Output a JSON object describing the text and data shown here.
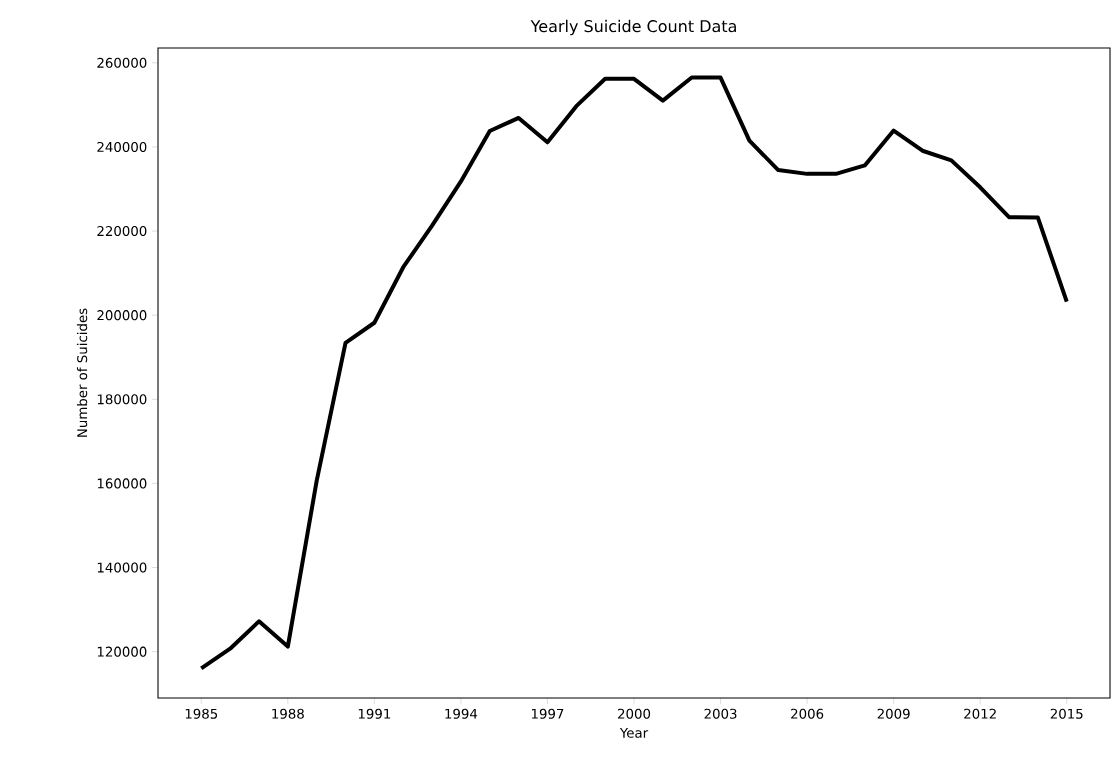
{
  "chart_data": {
    "type": "line",
    "title": "Yearly Suicide Count Data",
    "xlabel": "Year",
    "ylabel": "Number of Suicides",
    "x": [
      1985,
      1986,
      1987,
      1988,
      1989,
      1990,
      1991,
      1992,
      1993,
      1994,
      1995,
      1996,
      1997,
      1998,
      1999,
      2000,
      2001,
      2002,
      2003,
      2004,
      2005,
      2006,
      2007,
      2008,
      2009,
      2010,
      2011,
      2012,
      2013,
      2014,
      2015
    ],
    "series": [
      {
        "color": "#000000",
        "values": [
          116000,
          120700,
          127200,
          121200,
          160600,
          193400,
          198200,
          211400,
          221300,
          231800,
          243800,
          246900,
          241100,
          249700,
          256200,
          256200,
          251000,
          256500,
          256500,
          241500,
          234500,
          233600,
          233600,
          235600,
          243900,
          239100,
          236800,
          230400,
          223300,
          223200,
          203200
        ]
      }
    ],
    "xlim": [
      1983.5,
      2016.5
    ],
    "ylim": [
      108975,
      263525
    ],
    "xticks": [
      1985,
      1988,
      1991,
      1994,
      1997,
      2000,
      2003,
      2006,
      2009,
      2012,
      2015
    ],
    "yticks": [
      120000,
      140000,
      160000,
      180000,
      200000,
      220000,
      240000,
      260000
    ],
    "grid": false,
    "marker": "none",
    "line_style": "solid"
  }
}
